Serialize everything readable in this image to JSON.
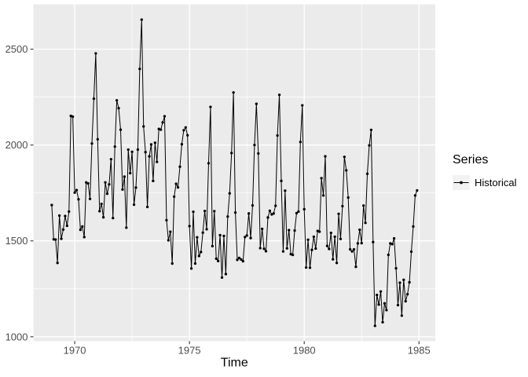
{
  "figure": {
    "kind": "ggplot-style time series plot",
    "background": "#FFFFFF"
  },
  "style": {
    "panel_bg": "#EBEBEB",
    "grid_major_color": "#FFFFFF",
    "grid_minor_color": "#FFFFFF",
    "series_color": "#000000",
    "axis_text_color": "#4D4D4D",
    "axis_title_color": "#000000",
    "tick_color": "#333333",
    "legend_key_bg": "#F2F2F2",
    "legend_text_color": "#000000"
  },
  "chart_data": {
    "type": "line",
    "title": "",
    "xlabel": "Time",
    "ylabel": "",
    "grid": "major+minor",
    "legend": {
      "position": "right",
      "title": "Series",
      "entries": [
        {
          "label": "Historical",
          "color": "#000000",
          "marker": "point-on-line"
        }
      ]
    },
    "x_ticks": [
      1970,
      1975,
      1980,
      1985
    ],
    "x_minor_ticks": [
      1972.5,
      1977.5,
      1982.5
    ],
    "y_ticks": [
      1000,
      1500,
      2000,
      2500
    ],
    "y_minor_ticks": [
      1250,
      1750,
      2250
    ],
    "xlim": [
      1968.2,
      1985.71
    ],
    "ylim": [
      977,
      2734
    ],
    "series": [
      {
        "name": "Historical",
        "start_year": 1969,
        "start_month": 1,
        "frequency": 12,
        "values": [
          1687,
          1508,
          1507,
          1385,
          1632,
          1511,
          1559,
          1630,
          1579,
          1653,
          2152,
          2148,
          1752,
          1765,
          1717,
          1558,
          1575,
          1520,
          1805,
          1800,
          1719,
          2008,
          2242,
          2478,
          2030,
          1655,
          1693,
          1623,
          1805,
          1746,
          1795,
          1926,
          1619,
          1992,
          2233,
          2192,
          2080,
          1768,
          1835,
          1569,
          1976,
          1853,
          1965,
          1689,
          1778,
          1976,
          2397,
          2654,
          2097,
          1963,
          1677,
          1941,
          2003,
          1813,
          2012,
          1912,
          2084,
          2080,
          2118,
          2150,
          1608,
          1503,
          1548,
          1382,
          1731,
          1798,
          1779,
          1887,
          2004,
          2077,
          2092,
          2051,
          1577,
          1356,
          1652,
          1382,
          1519,
          1421,
          1442,
          1543,
          1656,
          1561,
          1905,
          2199,
          1473,
          1655,
          1407,
          1395,
          1530,
          1309,
          1526,
          1327,
          1627,
          1748,
          1958,
          2274,
          1648,
          1401,
          1411,
          1403,
          1394,
          1520,
          1528,
          1643,
          1515,
          1685,
          2000,
          2215,
          1956,
          1462,
          1563,
          1459,
          1446,
          1622,
          1657,
          1638,
          1643,
          1683,
          2050,
          2262,
          1813,
          1445,
          1762,
          1461,
          1556,
          1431,
          1427,
          1554,
          1645,
          1653,
          2016,
          2207,
          1665,
          1361,
          1506,
          1360,
          1453,
          1522,
          1460,
          1552,
          1548,
          1827,
          1737,
          1941,
          1474,
          1458,
          1542,
          1404,
          1522,
          1385,
          1641,
          1510,
          1681,
          1938,
          1868,
          1726,
          1456,
          1445,
          1456,
          1365,
          1487,
          1558,
          1488,
          1684,
          1594,
          1850,
          1998,
          2079,
          1494,
          1057,
          1218,
          1168,
          1236,
          1076,
          1174,
          1139,
          1427,
          1487,
          1483,
          1513,
          1357,
          1165,
          1282,
          1110,
          1297,
          1185,
          1222,
          1284,
          1444,
          1575,
          1737,
          1763
        ]
      }
    ]
  }
}
